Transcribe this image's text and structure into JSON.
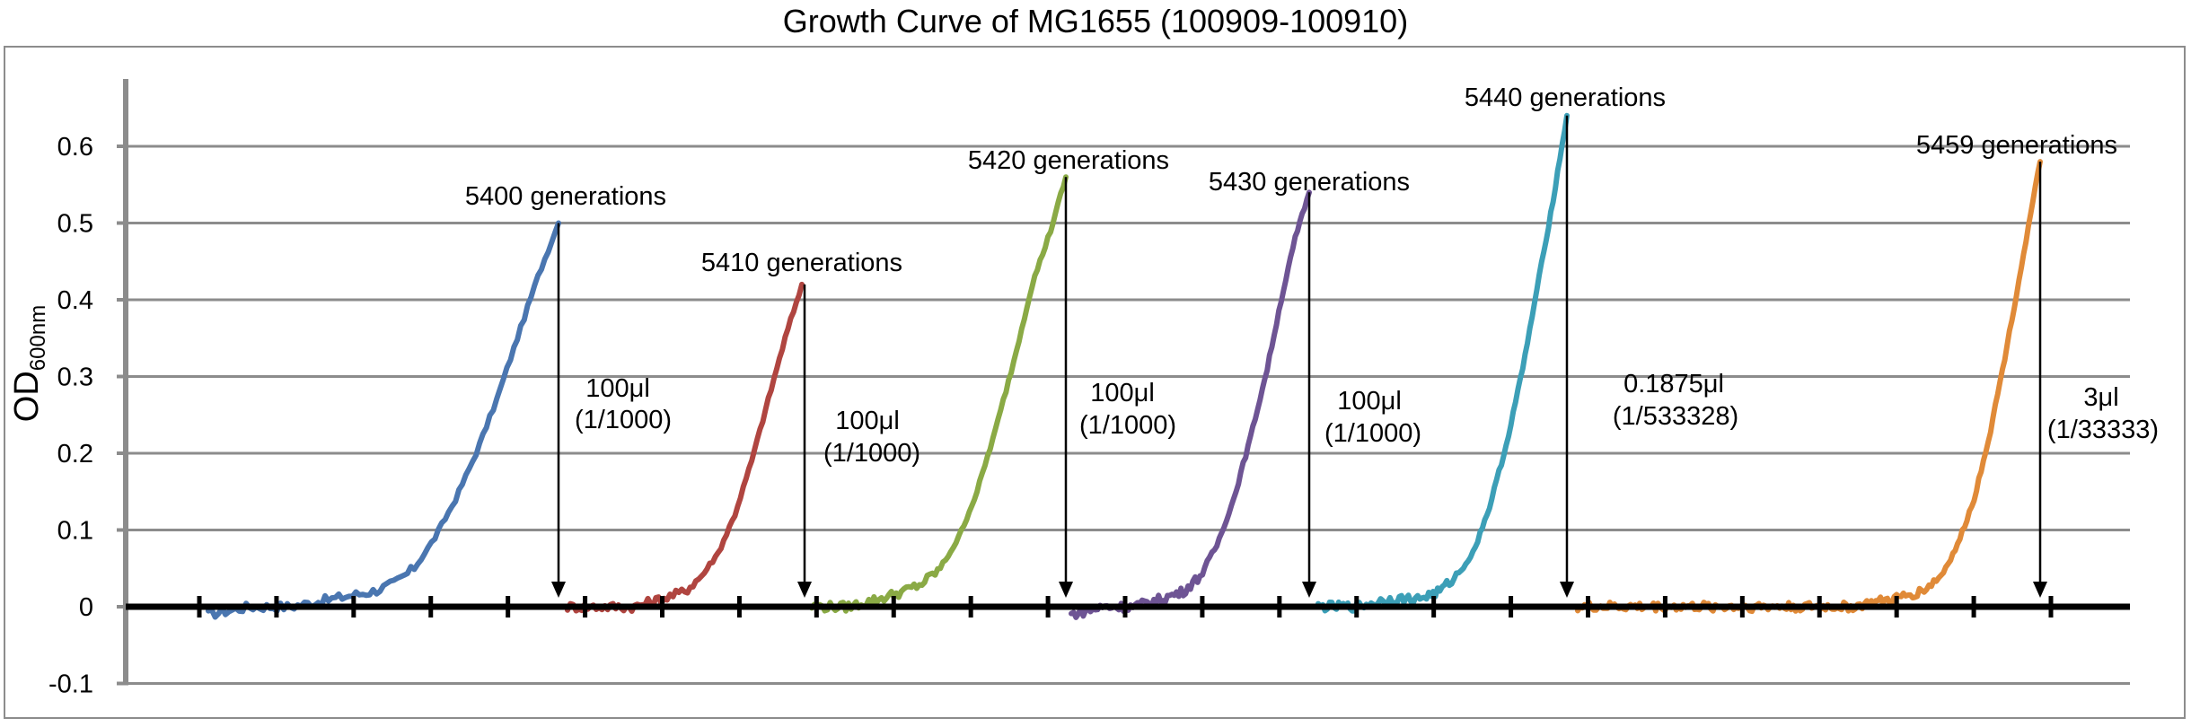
{
  "chart_data": {
    "type": "line",
    "title": "Growth Curve of MG1655 (100909-100910)",
    "ylabel": "OD",
    "ylabel_subscript": "600nm",
    "ylim": [
      -0.1,
      0.7
    ],
    "yticks": [
      -0.1,
      0,
      0.1,
      0.2,
      0.3,
      0.4,
      0.5,
      0.6
    ],
    "ytick_labels": [
      "-0.1",
      "0",
      "0.1",
      "0.2",
      "0.3",
      "0.4",
      "0.5",
      "0.6"
    ],
    "grid": true,
    "legend": "none",
    "x_tick_count": 25,
    "colors": {
      "series": [
        "#4a76b0",
        "#b04540",
        "#8aaa45",
        "#6e5494",
        "#3c9fb7",
        "#e08a38"
      ],
      "grid": "#8c8c8c",
      "axis": "#000000",
      "frame": "#8c8c8c"
    },
    "series": [
      {
        "points": [
          [
            0,
            -0.01
          ],
          [
            10,
            0.0
          ],
          [
            20,
            0.0
          ],
          [
            30,
            0.01
          ],
          [
            40,
            0.02
          ],
          [
            45,
            0.03
          ],
          [
            50,
            0.05
          ],
          [
            55,
            0.09
          ],
          [
            60,
            0.14
          ],
          [
            65,
            0.2
          ],
          [
            70,
            0.27
          ],
          [
            75,
            0.35
          ],
          [
            80,
            0.43
          ],
          [
            85,
            0.5
          ]
        ]
      },
      {
        "points": [
          [
            0,
            0.0
          ],
          [
            12,
            0.0
          ],
          [
            20,
            0.0
          ],
          [
            28,
            0.01
          ],
          [
            35,
            0.02
          ],
          [
            40,
            0.04
          ],
          [
            45,
            0.07
          ],
          [
            50,
            0.12
          ],
          [
            55,
            0.19
          ],
          [
            60,
            0.27
          ],
          [
            65,
            0.35
          ],
          [
            70,
            0.42
          ]
        ]
      },
      {
        "points": [
          [
            0,
            0.0
          ],
          [
            12,
            0.0
          ],
          [
            22,
            0.01
          ],
          [
            30,
            0.02
          ],
          [
            36,
            0.03
          ],
          [
            42,
            0.05
          ],
          [
            48,
            0.09
          ],
          [
            54,
            0.15
          ],
          [
            60,
            0.23
          ],
          [
            66,
            0.32
          ],
          [
            72,
            0.42
          ],
          [
            78,
            0.49
          ],
          [
            83,
            0.56
          ]
        ]
      },
      {
        "points": [
          [
            0,
            -0.01
          ],
          [
            12,
            0.0
          ],
          [
            22,
            0.0
          ],
          [
            32,
            0.01
          ],
          [
            40,
            0.02
          ],
          [
            46,
            0.04
          ],
          [
            52,
            0.08
          ],
          [
            58,
            0.14
          ],
          [
            64,
            0.22
          ],
          [
            70,
            0.31
          ],
          [
            75,
            0.4
          ],
          [
            80,
            0.48
          ],
          [
            85,
            0.54
          ]
        ]
      },
      {
        "points": [
          [
            0,
            0.0
          ],
          [
            14,
            0.0
          ],
          [
            26,
            0.01
          ],
          [
            36,
            0.01
          ],
          [
            44,
            0.02
          ],
          [
            50,
            0.04
          ],
          [
            56,
            0.07
          ],
          [
            62,
            0.13
          ],
          [
            68,
            0.21
          ],
          [
            74,
            0.31
          ],
          [
            80,
            0.43
          ],
          [
            85,
            0.53
          ],
          [
            90,
            0.64
          ]
        ]
      },
      {
        "points": [
          [
            0,
            0.0
          ],
          [
            20,
            0.0
          ],
          [
            40,
            0.0
          ],
          [
            60,
            0.0
          ],
          [
            80,
            0.0
          ],
          [
            100,
            0.0
          ],
          [
            115,
            0.01
          ],
          [
            125,
            0.02
          ],
          [
            132,
            0.04
          ],
          [
            138,
            0.08
          ],
          [
            144,
            0.14
          ],
          [
            150,
            0.23
          ],
          [
            156,
            0.34
          ],
          [
            162,
            0.46
          ],
          [
            168,
            0.58
          ]
        ]
      }
    ],
    "annotations": [
      {
        "label": "5400 generations",
        "volume": "100μl",
        "dilution": "(1/1000)",
        "peak": 0.5
      },
      {
        "label": "5410 generations",
        "volume": "100μl",
        "dilution": "(1/1000)",
        "peak": 0.42
      },
      {
        "label": "5420 generations",
        "volume": "100μl",
        "dilution": "(1/1000)",
        "peak": 0.56
      },
      {
        "label": "5430 generations",
        "volume": "100μl",
        "dilution": "(1/1000)",
        "peak": 0.54
      },
      {
        "label": "5440 generations",
        "volume": "0.1875μl",
        "dilution": "(1/533328)",
        "peak": 0.64
      },
      {
        "label": "5459 generations",
        "volume": "3μl",
        "dilution": "(1/33333)",
        "peak": 0.58
      }
    ]
  }
}
